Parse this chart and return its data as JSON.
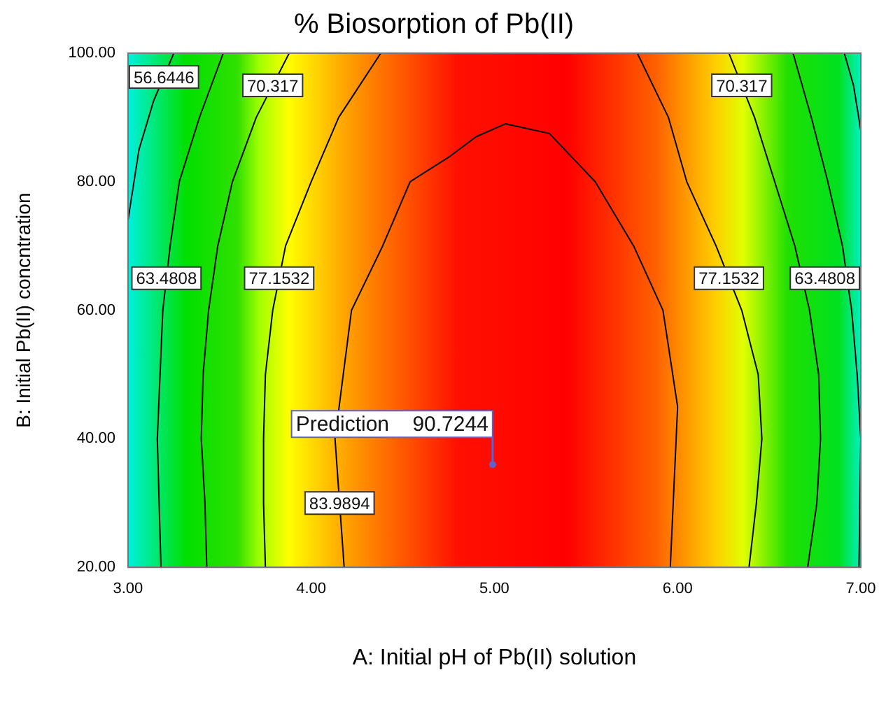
{
  "chart_data": {
    "type": "line",
    "title": "% Biosorption of Pb(II)",
    "xlabel": "A: Initial pH of Pb(II) solution",
    "ylabel": "B: Initial Pb(II) concntration",
    "xlim": [
      3,
      7
    ],
    "ylim": [
      20,
      100
    ],
    "xticks": [
      {
        "value": 3,
        "label": "3.00"
      },
      {
        "value": 4,
        "label": "4.00"
      },
      {
        "value": 5,
        "label": "5.00"
      },
      {
        "value": 6,
        "label": "6.00"
      },
      {
        "value": 7,
        "label": "7.00"
      }
    ],
    "yticks": [
      {
        "value": 20,
        "label": "20.00"
      },
      {
        "value": 40,
        "label": "40.00"
      },
      {
        "value": 60,
        "label": "60.00"
      },
      {
        "value": 80,
        "label": "80.00"
      },
      {
        "value": 100,
        "label": "100.00"
      }
    ],
    "grid": false,
    "legend": false,
    "line_style": "solid",
    "series": [
      {
        "name": "56.6446",
        "color": "#000000",
        "x": [
          3.25,
          3.14,
          3.06,
          3.0
        ],
        "values": [
          100,
          92.6,
          85,
          74
        ]
      },
      {
        "name": "63.4808",
        "color": "#000000",
        "x": [
          3.52,
          3.39,
          3.28,
          3.23,
          3.19,
          3.16,
          3.18
        ],
        "values": [
          100,
          90,
          80,
          70,
          60,
          40,
          20
        ]
      },
      {
        "name": "70.317",
        "color": "#000000",
        "x": [
          3.88,
          3.7,
          3.57,
          3.49,
          3.44,
          3.41,
          3.4,
          3.42,
          3.43
        ],
        "values": [
          100,
          90,
          80,
          70,
          60,
          50,
          40,
          30,
          20
        ]
      },
      {
        "name": "77.1532",
        "color": "#000000",
        "x": [
          4.38,
          4.15,
          4.0,
          3.86,
          3.79,
          3.75,
          3.74,
          3.74,
          3.75
        ],
        "values": [
          100,
          90,
          80,
          70,
          60,
          50,
          40,
          30,
          20
        ]
      },
      {
        "name": "83.9894",
        "color": "#000000",
        "x": [
          4.18,
          4.13,
          4.22,
          4.39,
          4.54,
          4.76,
          4.9,
          5.06,
          5.3,
          5.55,
          5.76,
          5.92,
          6.0,
          5.96
        ],
        "values": [
          20,
          40,
          60,
          70,
          80,
          84,
          87,
          89,
          87.5,
          80,
          70,
          60,
          45,
          20
        ]
      },
      {
        "name": "77.1532",
        "color": "#000000",
        "x": [
          5.78,
          5.95,
          6.05,
          6.21,
          6.35,
          6.44,
          6.46,
          6.43,
          6.39
        ],
        "values": [
          100,
          90,
          80,
          70,
          60,
          50,
          40,
          30,
          20
        ]
      },
      {
        "name": "70.317",
        "color": "#000000",
        "x": [
          6.28,
          6.42,
          6.53,
          6.64,
          6.72,
          6.77,
          6.78,
          6.76,
          6.71
        ],
        "values": [
          100,
          90,
          80,
          70,
          60,
          50,
          40,
          30,
          20
        ]
      },
      {
        "name": "63.4808",
        "color": "#000000",
        "x": [
          6.63,
          6.73,
          6.82,
          6.9,
          6.95,
          6.98,
          7.0,
          6.99
        ],
        "values": [
          100,
          90,
          80,
          70,
          60,
          50,
          40,
          20
        ]
      },
      {
        "color": "#000000",
        "x": [
          6.91,
          6.96,
          7.0
        ],
        "values": [
          100,
          95,
          88
        ]
      },
      {
        "type": "scatter",
        "color": "#6060d0",
        "x": [
          4.99
        ],
        "values": [
          36
        ],
        "value_labels": [
          "Prediction    90.7244"
        ]
      }
    ]
  }
}
